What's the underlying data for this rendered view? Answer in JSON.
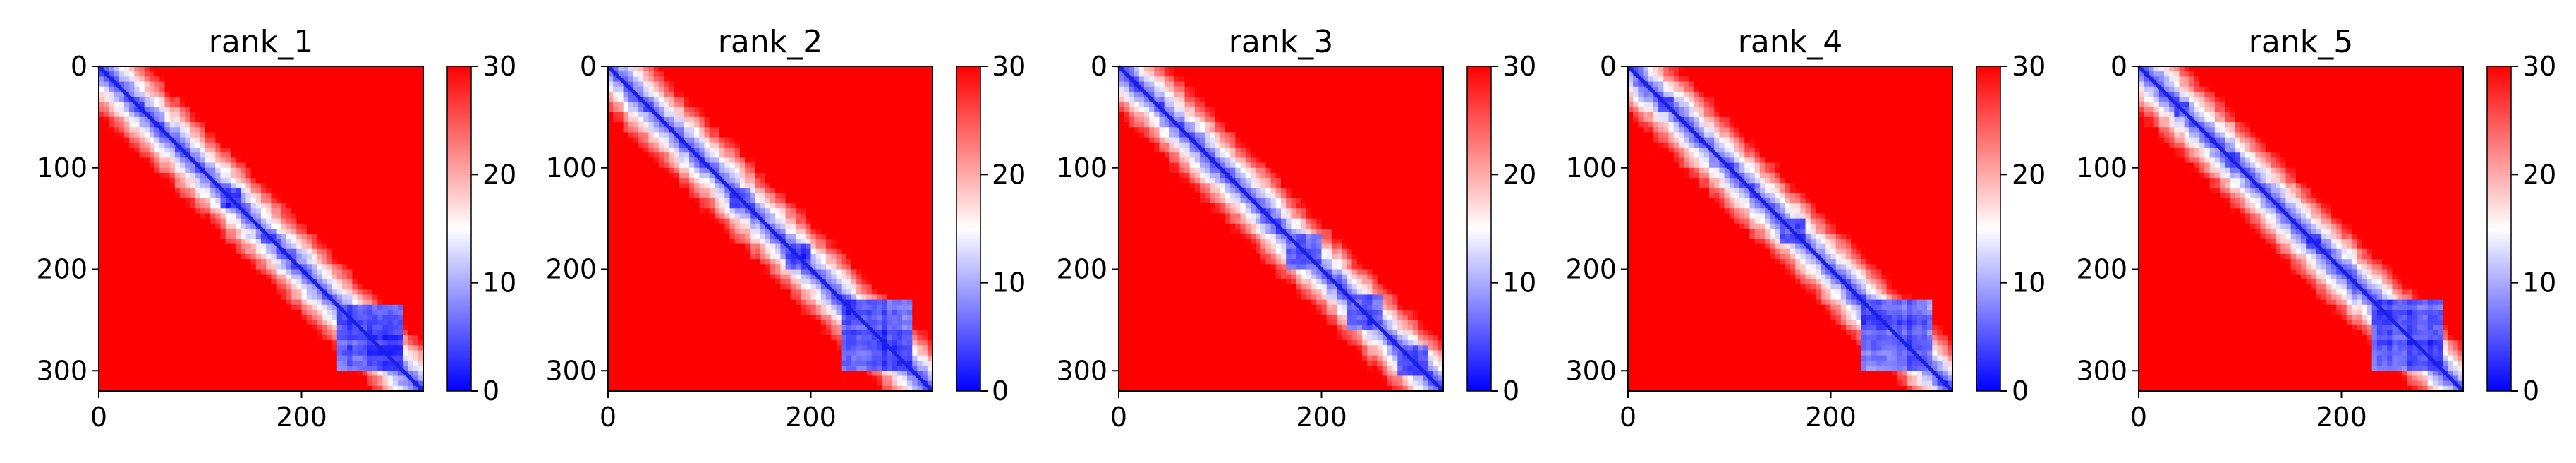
{
  "chart_data": [
    {
      "type": "heatmap",
      "title": "rank_1",
      "x_ticks": [
        "0",
        "200"
      ],
      "y_ticks": [
        "0",
        "100",
        "200",
        "300"
      ],
      "xlim": [
        0,
        320
      ],
      "ylim": [
        320,
        0
      ],
      "colorbar": {
        "ticks": [
          "0",
          "10",
          "20",
          "30"
        ],
        "range": [
          0,
          30
        ],
        "colormap": "bwr"
      },
      "domains": [
        [
          35,
          45
        ],
        [
          118,
          138
        ],
        [
          160,
          175
        ],
        [
          235,
          300
        ]
      ],
      "seed": 11
    },
    {
      "type": "heatmap",
      "title": "rank_2",
      "x_ticks": [
        "0",
        "200"
      ],
      "y_ticks": [
        "0",
        "100",
        "200",
        "300"
      ],
      "xlim": [
        0,
        320
      ],
      "ylim": [
        320,
        0
      ],
      "colorbar": {
        "ticks": [
          "0",
          "10",
          "20",
          "30"
        ],
        "range": [
          0,
          30
        ],
        "colormap": "bwr"
      },
      "domains": [
        [
          35,
          45
        ],
        [
          120,
          140
        ],
        [
          175,
          200
        ],
        [
          230,
          300
        ]
      ],
      "seed": 23
    },
    {
      "type": "heatmap",
      "title": "rank_3",
      "x_ticks": [
        "0",
        "200"
      ],
      "y_ticks": [
        "0",
        "100",
        "200",
        "300"
      ],
      "xlim": [
        0,
        320
      ],
      "ylim": [
        320,
        0
      ],
      "colorbar": {
        "ticks": [
          "0",
          "10",
          "20",
          "30"
        ],
        "range": [
          0,
          30
        ],
        "colormap": "bwr"
      },
      "domains": [
        [
          35,
          45
        ],
        [
          165,
          200
        ],
        [
          225,
          260
        ],
        [
          275,
          305
        ]
      ],
      "seed": 37
    },
    {
      "type": "heatmap",
      "title": "rank_4",
      "x_ticks": [
        "0",
        "200"
      ],
      "y_ticks": [
        "0",
        "100",
        "200",
        "300"
      ],
      "xlim": [
        0,
        320
      ],
      "ylim": [
        320,
        0
      ],
      "colorbar": {
        "ticks": [
          "0",
          "10",
          "20",
          "30"
        ],
        "range": [
          0,
          30
        ],
        "colormap": "bwr"
      },
      "domains": [
        [
          30,
          45
        ],
        [
          150,
          175
        ],
        [
          230,
          300
        ]
      ],
      "seed": 41
    },
    {
      "type": "heatmap",
      "title": "rank_5",
      "x_ticks": [
        "0",
        "200"
      ],
      "y_ticks": [
        "0",
        "100",
        "200",
        "300"
      ],
      "xlim": [
        0,
        320
      ],
      "ylim": [
        320,
        0
      ],
      "colorbar": {
        "ticks": [
          "0",
          "10",
          "20",
          "30"
        ],
        "range": [
          0,
          30
        ],
        "colormap": "bwr"
      },
      "domains": [
        [
          35,
          50
        ],
        [
          85,
          100
        ],
        [
          165,
          180
        ],
        [
          230,
          300
        ]
      ],
      "seed": 53
    }
  ],
  "colors": {
    "low": "#0000ff",
    "mid": "#ffffff",
    "high": "#ff0000",
    "diagonal": "#1a22e0"
  }
}
